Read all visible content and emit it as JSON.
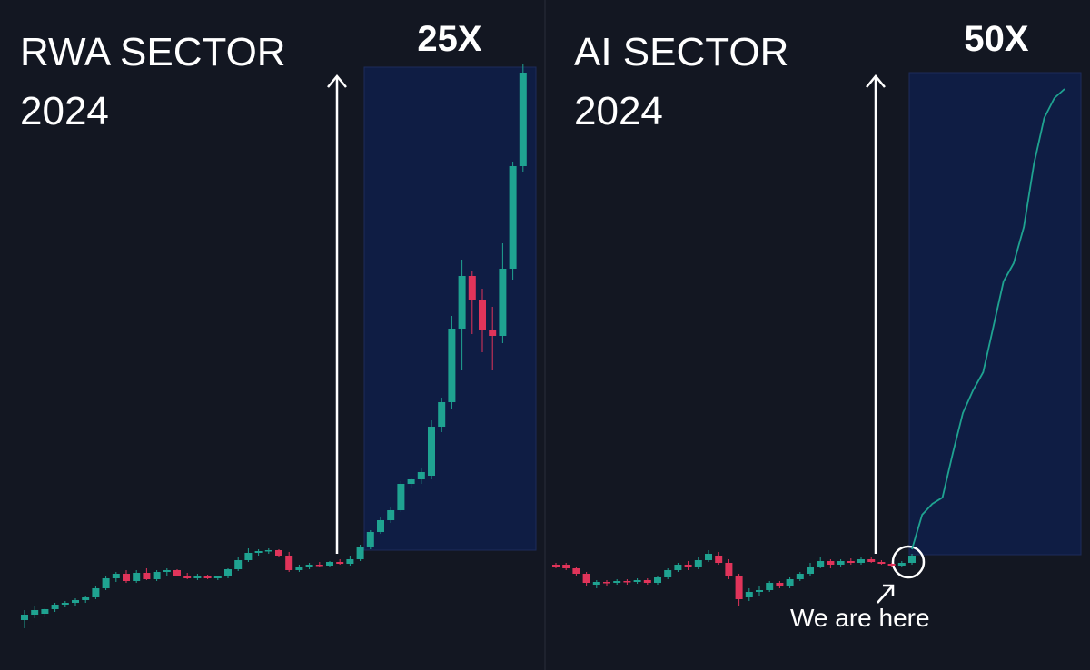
{
  "chart_data": [
    {
      "type": "candlestick",
      "title": [
        "RWA SECTOR",
        "2024"
      ],
      "annotation": "25X",
      "up_color": "#1fa391",
      "down_color": "#e0345a",
      "ylim": [
        0,
        738
      ],
      "ohlc": [
        [
          55,
          66,
          46,
          61
        ],
        [
          61,
          70,
          57,
          66
        ],
        [
          62,
          68,
          58,
          67
        ],
        [
          67,
          74,
          64,
          72
        ],
        [
          72,
          76,
          69,
          74
        ],
        [
          74,
          79,
          71,
          77
        ],
        [
          77,
          82,
          74,
          80
        ],
        [
          80,
          92,
          78,
          90
        ],
        [
          90,
          104,
          88,
          101
        ],
        [
          101,
          108,
          97,
          106
        ],
        [
          106,
          110,
          96,
          98
        ],
        [
          98,
          110,
          96,
          107
        ],
        [
          107,
          112,
          99,
          100
        ],
        [
          100,
          110,
          98,
          108
        ],
        [
          108,
          112,
          104,
          110
        ],
        [
          110,
          111,
          103,
          104
        ],
        [
          104,
          107,
          100,
          101
        ],
        [
          101,
          106,
          99,
          104
        ],
        [
          104,
          105,
          100,
          101
        ],
        [
          101,
          104,
          99,
          103
        ],
        [
          103,
          112,
          101,
          111
        ],
        [
          111,
          124,
          109,
          121
        ],
        [
          121,
          134,
          119,
          129
        ],
        [
          129,
          133,
          126,
          131
        ],
        [
          131,
          134,
          128,
          132
        ],
        [
          132,
          133,
          124,
          126
        ],
        [
          126,
          130,
          108,
          110
        ],
        [
          110,
          116,
          108,
          113
        ],
        [
          113,
          118,
          111,
          116
        ],
        [
          116,
          119,
          113,
          115
        ],
        [
          115,
          120,
          114,
          119
        ],
        [
          119,
          122,
          116,
          117
        ],
        [
          117,
          126,
          115,
          122
        ],
        [
          122,
          138,
          120,
          135
        ],
        [
          135,
          154,
          133,
          152
        ],
        [
          152,
          168,
          150,
          165
        ],
        [
          165,
          180,
          162,
          176
        ],
        [
          176,
          208,
          174,
          205
        ],
        [
          205,
          212,
          200,
          210
        ],
        [
          210,
          222,
          205,
          218
        ],
        [
          214,
          275,
          210,
          268
        ],
        [
          268,
          300,
          262,
          295
        ],
        [
          295,
          390,
          288,
          376
        ],
        [
          376,
          452,
          330,
          434
        ],
        [
          434,
          440,
          370,
          408
        ],
        [
          408,
          420,
          350,
          375
        ],
        [
          375,
          400,
          330,
          368
        ],
        [
          368,
          470,
          360,
          442
        ],
        [
          442,
          560,
          430,
          555
        ],
        [
          555,
          668,
          548,
          658
        ]
      ]
    },
    {
      "type": "candlestick",
      "title": [
        "AI SECTOR",
        "2024"
      ],
      "annotation": "50X",
      "note": "We are here",
      "up_color": "#1fa391",
      "down_color": "#e0345a",
      "projection_color": "#1fa391",
      "ylim": [
        0,
        738
      ],
      "ohlc": [
        [
          116,
          118,
          112,
          114
        ],
        [
          116,
          118,
          110,
          112
        ],
        [
          112,
          114,
          104,
          106
        ],
        [
          106,
          108,
          92,
          96
        ],
        [
          94,
          99,
          90,
          97
        ],
        [
          97,
          99,
          93,
          96
        ],
        [
          96,
          100,
          94,
          98
        ],
        [
          98,
          100,
          94,
          97
        ],
        [
          97,
          101,
          95,
          99
        ],
        [
          99,
          101,
          94,
          96
        ],
        [
          96,
          103,
          94,
          102
        ],
        [
          102,
          112,
          100,
          110
        ],
        [
          110,
          118,
          108,
          116
        ],
        [
          116,
          120,
          110,
          113
        ],
        [
          113,
          124,
          111,
          121
        ],
        [
          121,
          132,
          119,
          128
        ],
        [
          126,
          130,
          116,
          118
        ],
        [
          118,
          122,
          100,
          104
        ],
        [
          104,
          106,
          70,
          78
        ],
        [
          80,
          90,
          76,
          86
        ],
        [
          86,
          92,
          82,
          88
        ],
        [
          88,
          98,
          86,
          96
        ],
        [
          96,
          98,
          90,
          92
        ],
        [
          92,
          102,
          90,
          100
        ],
        [
          100,
          108,
          98,
          106
        ],
        [
          106,
          118,
          104,
          114
        ],
        [
          114,
          124,
          112,
          120
        ],
        [
          120,
          122,
          112,
          116
        ],
        [
          116,
          122,
          114,
          120
        ],
        [
          120,
          123,
          116,
          118
        ],
        [
          118,
          124,
          116,
          122
        ],
        [
          122,
          124,
          118,
          119
        ],
        [
          119,
          121,
          116,
          117
        ],
        [
          117,
          118,
          114,
          115
        ],
        [
          115,
          120,
          113,
          118
        ],
        [
          118,
          128,
          116,
          126
        ]
      ],
      "projection": [
        133,
        171,
        183,
        190,
        238,
        283,
        308,
        328,
        378,
        428,
        448,
        488,
        558,
        608,
        630,
        640
      ]
    }
  ]
}
